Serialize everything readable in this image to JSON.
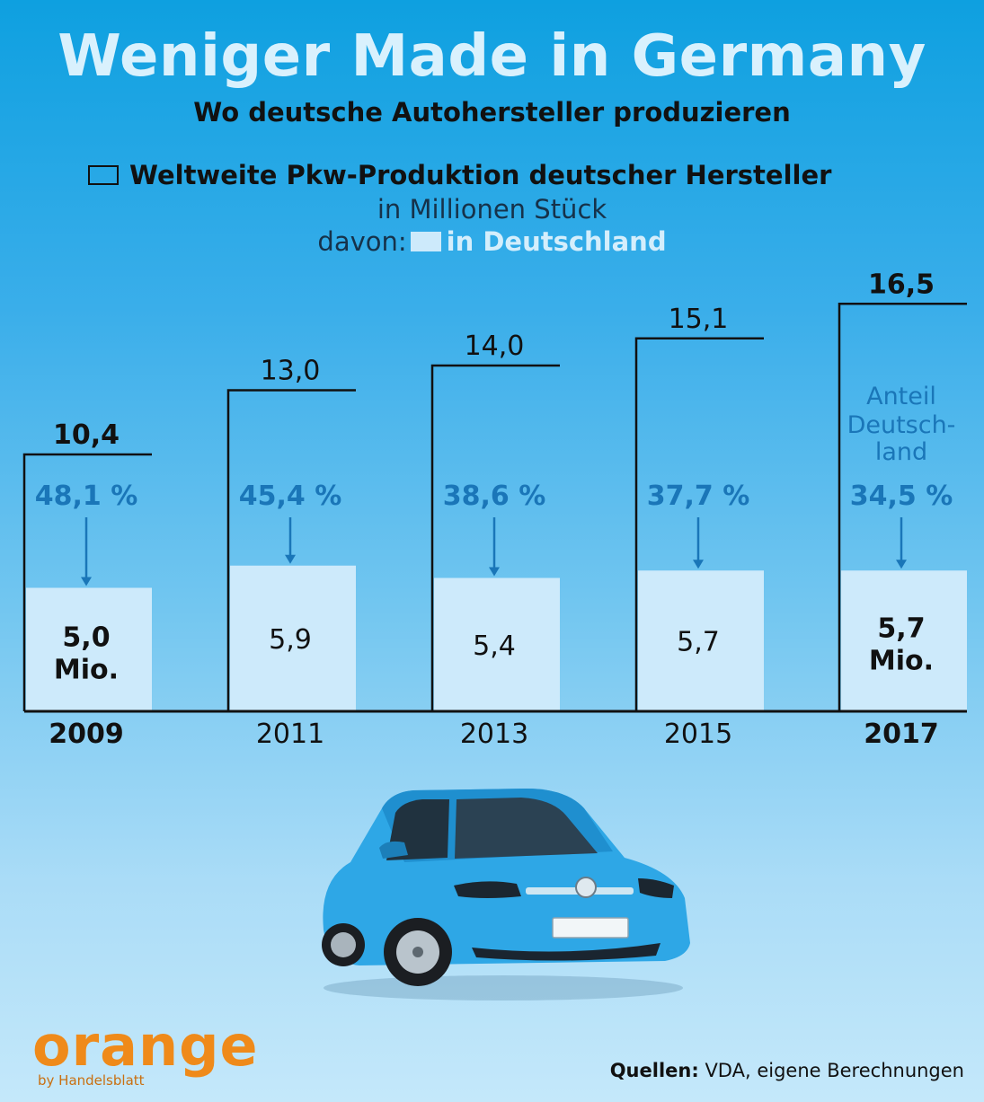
{
  "header": {
    "title": "Weniger Made in Germany",
    "subtitle": "Wo deutsche Autohersteller produzieren"
  },
  "legend": {
    "main": "Weltweite Pkw-Produktion deutscher Hersteller",
    "unit": "in Millionen Stück",
    "davon": "davon:",
    "sub": "in Deutschland"
  },
  "annotation": "Anteil Deutsch- land",
  "colors": {
    "background_top": "#0ea0e0",
    "germany_fill": "#cdeafb",
    "share_text": "#1a76b8",
    "outline": "#111111",
    "brand_orange": "#ef8a1a"
  },
  "chart_data": {
    "type": "bar",
    "title": "Weltweite Pkw-Produktion deutscher Hersteller",
    "ylabel": "in Millionen Stück",
    "xlabel": "",
    "ylim": [
      0,
      18
    ],
    "categories": [
      "2009",
      "2011",
      "2013",
      "2015",
      "2017"
    ],
    "bold_categories": [
      "2009",
      "2017"
    ],
    "series": [
      {
        "name": "Weltweit",
        "values": [
          10.4,
          13.0,
          14.0,
          15.1,
          16.5
        ],
        "labels": [
          "10,4",
          "13,0",
          "14,0",
          "15,1",
          "16,5"
        ]
      },
      {
        "name": "in Deutschland",
        "values": [
          5.0,
          5.9,
          5.4,
          5.7,
          5.7
        ],
        "labels": [
          "5,0\nMio.",
          "5,9",
          "5,4",
          "5,7",
          "5,7\nMio."
        ]
      }
    ],
    "shares": [
      "48,1 %",
      "45,4 %",
      "38,6 %",
      "37,7 %",
      "34,5 %"
    ]
  },
  "brand": {
    "logo": "orange",
    "byline": "by Handelsblatt"
  },
  "source": {
    "label": "Quellen:",
    "text": "VDA, eigene Berechnungen"
  }
}
